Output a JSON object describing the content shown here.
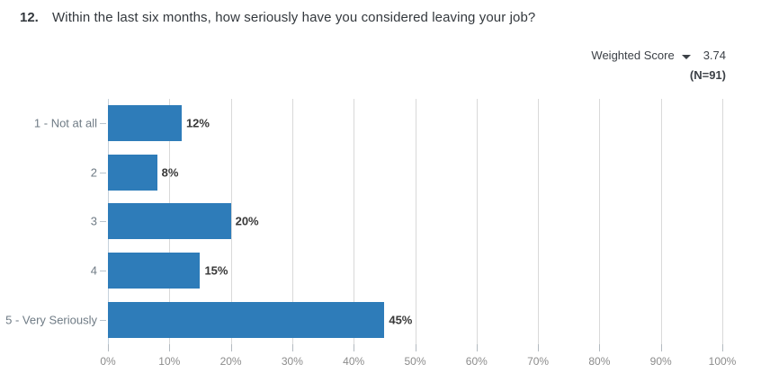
{
  "header": {
    "number": "12.",
    "question": "Within the last six months, how seriously have you considered leaving your job?"
  },
  "stats": {
    "weighted_label": "Weighted Score",
    "weighted_value": "3.74",
    "n_label": "(N=91)",
    "dropdown_icon": "caret-down"
  },
  "chart_data": {
    "type": "bar",
    "orientation": "horizontal",
    "title": "Within the last six months, how seriously have you considered leaving your job?",
    "categories": [
      "1 - Not at all",
      "2",
      "3",
      "4",
      "5 - Very Seriously"
    ],
    "values": [
      12,
      8,
      20,
      15,
      45
    ],
    "value_labels": [
      "12%",
      "8%",
      "20%",
      "15%",
      "45%"
    ],
    "x_ticks": [
      "0%",
      "10%",
      "20%",
      "30%",
      "40%",
      "50%",
      "60%",
      "70%",
      "80%",
      "90%",
      "100%"
    ],
    "xlim": [
      0,
      100
    ],
    "grid": true,
    "legend": false,
    "bar_color": "#2e7cb9",
    "gridline_color": "#d9d9d9",
    "axis_line_color": "#c6d1dc"
  }
}
